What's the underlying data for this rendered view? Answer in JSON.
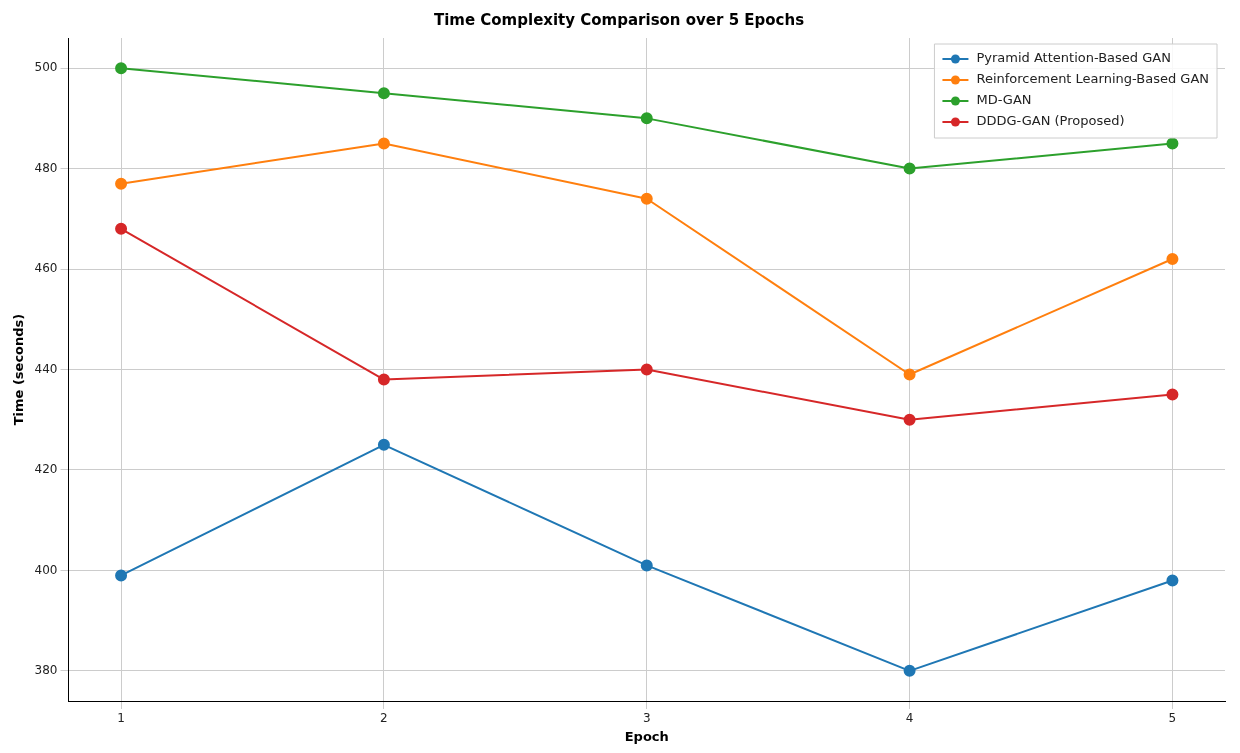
{
  "chart_data": {
    "type": "line",
    "title": "Time Complexity Comparison over 5 Epochs",
    "xlabel": "Epoch",
    "ylabel": "Time (seconds)",
    "x": [
      1,
      2,
      3,
      4,
      5
    ],
    "series": [
      {
        "name": "Pyramid Attention-Based GAN",
        "color": "#1f77b4",
        "values": [
          399,
          425,
          401,
          380,
          398
        ]
      },
      {
        "name": "Reinforcement Learning-Based GAN",
        "color": "#ff7f0e",
        "values": [
          477,
          485,
          474,
          439,
          462
        ]
      },
      {
        "name": "MD-GAN",
        "color": "#2ca02c",
        "values": [
          500,
          495,
          490,
          480,
          485
        ]
      },
      {
        "name": "DDDG-GAN (Proposed)",
        "color": "#d62728",
        "values": [
          468,
          438,
          440,
          430,
          435
        ]
      }
    ],
    "xlim": [
      0.8,
      5.2
    ],
    "xticks": [
      1,
      2,
      3,
      4,
      5
    ],
    "ylim": [
      374,
      506
    ],
    "yticks": [
      380,
      400,
      420,
      440,
      460,
      480,
      500
    ],
    "grid": true,
    "legend": "top right",
    "marker": "circle",
    "line_style": "solid"
  }
}
